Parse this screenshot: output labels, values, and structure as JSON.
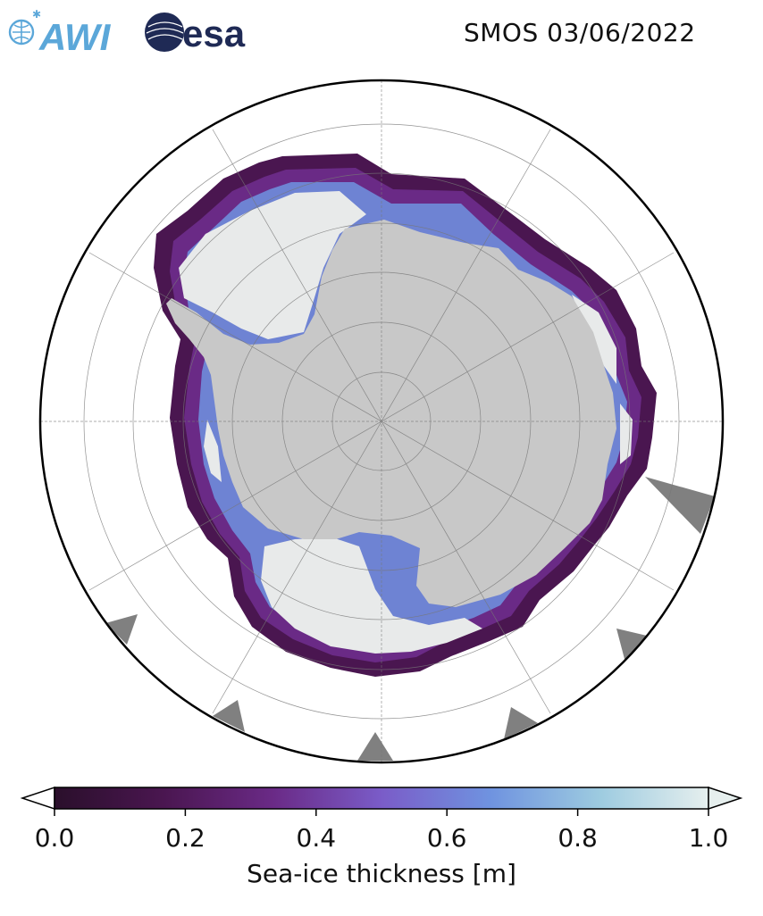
{
  "header": {
    "logo_left": "AWI",
    "logo_right": "esa",
    "title": "SMOS 03/06/2022"
  },
  "map": {
    "projection": "south-polar-stereographic",
    "region": "Antarctica",
    "colors": {
      "land": "#c8c8c8",
      "thick_ice": "#e8eaea",
      "ocean": "#ffffff",
      "no_data": "#808080",
      "graticule": "#777777"
    }
  },
  "colorbar": {
    "label": "Sea-ice thickness [m]",
    "ticks": [
      "0.0",
      "0.2",
      "0.4",
      "0.6",
      "0.8",
      "1.0"
    ],
    "tick_values": [
      0.0,
      0.2,
      0.4,
      0.6,
      0.8,
      1.0
    ],
    "range": [
      0.0,
      1.0
    ],
    "extend": "both",
    "colormap": [
      "#2a0f2b",
      "#4a1650",
      "#6a2a86",
      "#7a5cc8",
      "#6f93e0",
      "#9dcbe0",
      "#e6efee"
    ]
  }
}
